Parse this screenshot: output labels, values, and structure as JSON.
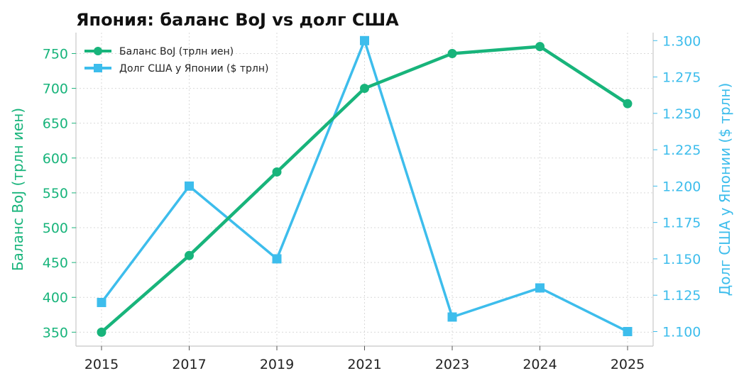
{
  "chart_data": {
    "type": "line",
    "title": "Япония: баланс BoJ vs долг США",
    "x": [
      "2015",
      "2017",
      "2019",
      "2021",
      "2023",
      "2024",
      "2025"
    ],
    "series": [
      {
        "name": "Баланс BoJ (трлн иен)",
        "axis": "left",
        "color": "#18b47b",
        "marker": "circle",
        "values": [
          350,
          460,
          580,
          700,
          750,
          760,
          678
        ]
      },
      {
        "name": "Долг США у Японии ($ трлн)",
        "axis": "right",
        "color": "#3dbdec",
        "marker": "square",
        "values": [
          1.12,
          1.2,
          1.15,
          1.3,
          1.11,
          1.13,
          1.1
        ]
      }
    ],
    "ylabel_left": "Баланс BoJ (трлн иен)",
    "ylabel_right": "Долг США у Японии ($ трлн)",
    "ylim_left": [
      330,
      780
    ],
    "yticks_left": [
      "350",
      "400",
      "450",
      "500",
      "550",
      "600",
      "650",
      "700",
      "750"
    ],
    "ylim_right": [
      1.09,
      1.3055
    ],
    "yticks_right": [
      "1.100",
      "1.125",
      "1.150",
      "1.175",
      "1.200",
      "1.225",
      "1.250",
      "1.275",
      "1.300"
    ],
    "grid": true,
    "legend_position": "top-left"
  }
}
